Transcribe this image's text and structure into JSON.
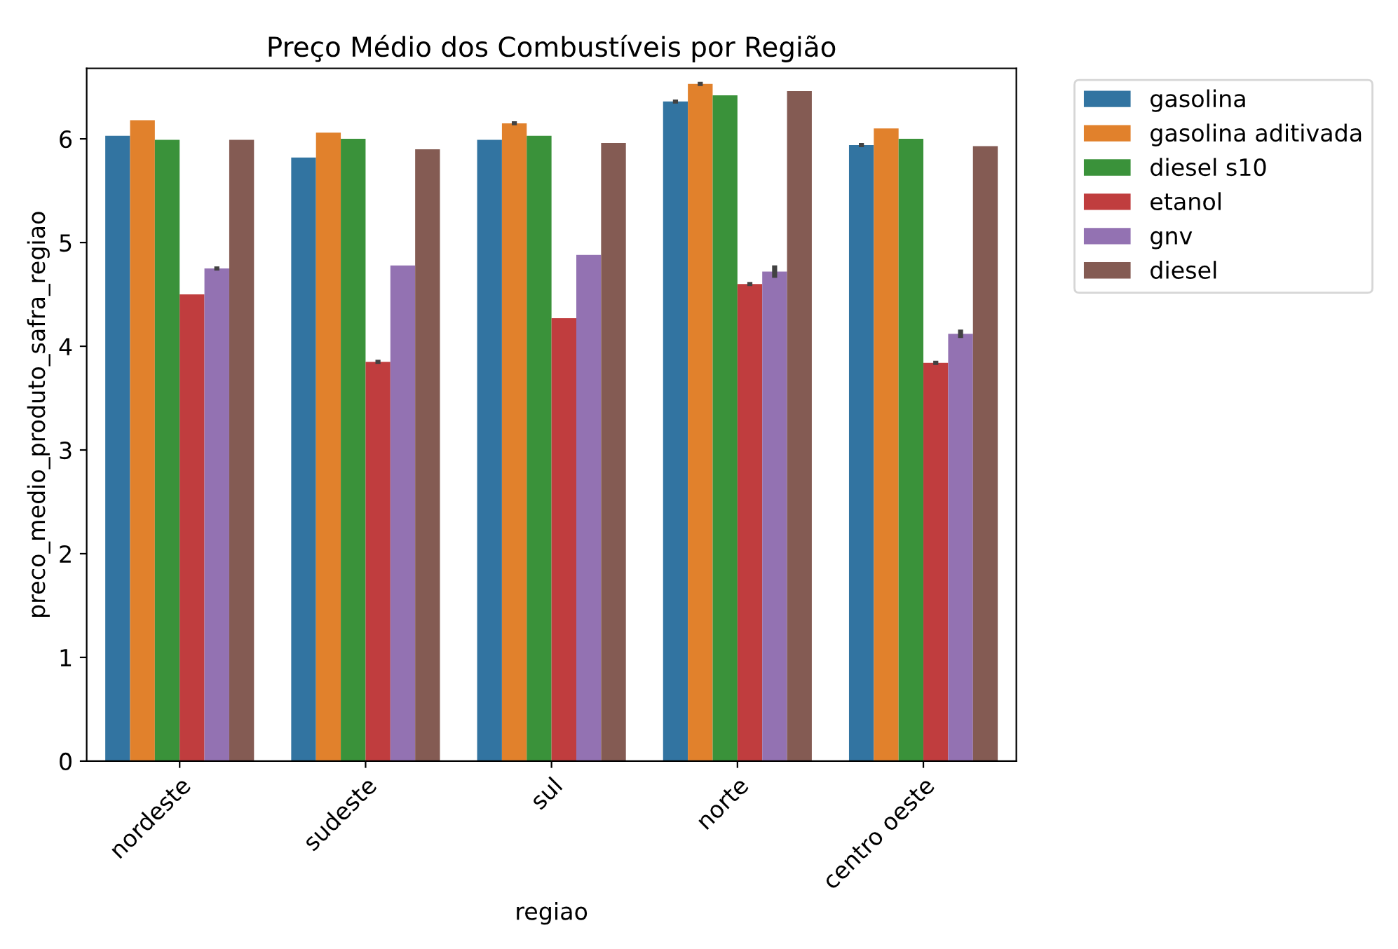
{
  "chart_data": {
    "type": "bar",
    "title": "Preço Médio dos Combustíveis por Região",
    "xlabel": "regiao",
    "ylabel": "preco_medio_produto_safra_regiao",
    "categories": [
      "nordeste",
      "sudeste",
      "sul",
      "norte",
      "centro oeste"
    ],
    "series": [
      {
        "name": "gasolina",
        "color": "#3274a1",
        "values": [
          6.03,
          5.82,
          5.99,
          6.36,
          5.94
        ],
        "errors": [
          null,
          null,
          null,
          0.02,
          0.02
        ]
      },
      {
        "name": "gasolina aditivada",
        "color": "#e1812c",
        "values": [
          6.18,
          6.06,
          6.15,
          6.53,
          6.1
        ],
        "errors": [
          null,
          null,
          0.02,
          0.02,
          null
        ]
      },
      {
        "name": "diesel s10",
        "color": "#3a923a",
        "values": [
          5.99,
          6.0,
          6.03,
          6.42,
          6.0
        ],
        "errors": [
          null,
          null,
          null,
          null,
          null
        ]
      },
      {
        "name": "etanol",
        "color": "#c03d3e",
        "values": [
          4.5,
          3.85,
          4.27,
          4.6,
          3.84
        ],
        "errors": [
          null,
          0.02,
          null,
          0.02,
          0.02
        ]
      },
      {
        "name": "gnv",
        "color": "#9372b2",
        "values": [
          4.75,
          4.78,
          4.88,
          4.72,
          4.12
        ],
        "errors": [
          0.02,
          null,
          null,
          0.06,
          0.04
        ]
      },
      {
        "name": "diesel",
        "color": "#845b53",
        "values": [
          5.99,
          5.9,
          5.96,
          6.46,
          5.93
        ],
        "errors": [
          null,
          null,
          null,
          null,
          null
        ]
      }
    ],
    "ylim": [
      0,
      6.68
    ],
    "yticks": [
      0,
      1,
      2,
      3,
      4,
      5,
      6
    ],
    "grid": false,
    "legend": "top right"
  }
}
